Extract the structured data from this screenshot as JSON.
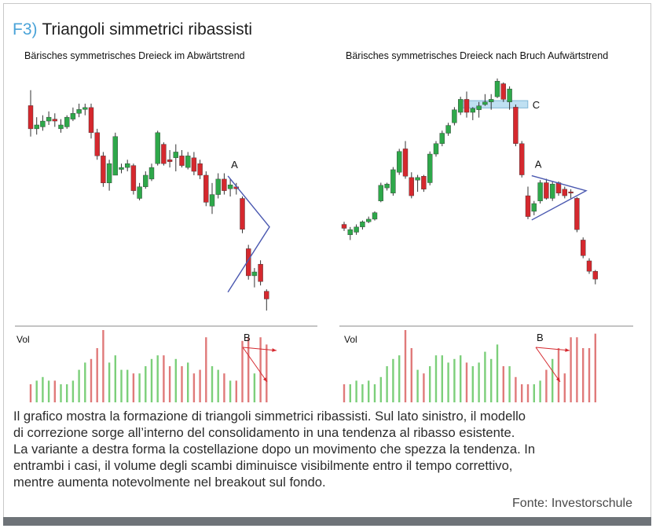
{
  "figure": {
    "label": "F3)",
    "title": "Triangoli simmetrici ribassisti",
    "caption_lines": [
      "Il grafico mostra la formazione di triangoli simmetrici ribassisti. Sul lato sinistro, il modello",
      "di correzione sorge all’interno del consolidamento in una tendenza al ribasso esistente.",
      "La variante a destra forma la costellazione dopo un movimento che spezza la tendenza. In",
      "entrambi i casi, il volume degli scambi diminuisce visibilmente entro il tempo correttivo,",
      "mentre aumenta notevolmente nel breakout sul fondo."
    ],
    "source": "Fonte: Investorschule"
  },
  "colors": {
    "bull": "#2ea84a",
    "bear": "#d5282e",
    "vol_bull": "#7ccf7a",
    "vol_bear": "#e07a7a",
    "triangle": "#4a58b0",
    "breakout_arrow": "#d5282e",
    "zone_fill": "#bfe0f2",
    "zone_stroke": "#7fb6d6",
    "axis": "#888888"
  },
  "chart_data": [
    {
      "type": "candlestick",
      "title": "Bärisches symmetrisches Dreieck im Abwärtstrend",
      "volume_label": "Vol",
      "annotations": {
        "triangle_label": "A",
        "volume_label": "B"
      },
      "candles": [
        {
          "o": 70,
          "h": 74,
          "l": 62,
          "c": 64
        },
        {
          "o": 64,
          "h": 67,
          "l": 62.5,
          "c": 65
        },
        {
          "o": 64.5,
          "h": 67.5,
          "l": 63.5,
          "c": 66
        },
        {
          "o": 66,
          "h": 68.5,
          "l": 65,
          "c": 67
        },
        {
          "o": 66.5,
          "h": 68,
          "l": 64.5,
          "c": 66
        },
        {
          "o": 64,
          "h": 66.5,
          "l": 63,
          "c": 65
        },
        {
          "o": 64.5,
          "h": 67.5,
          "l": 64,
          "c": 67
        },
        {
          "o": 66.5,
          "h": 69.5,
          "l": 66,
          "c": 68
        },
        {
          "o": 68,
          "h": 70.5,
          "l": 67,
          "c": 69
        },
        {
          "o": 69,
          "h": 70.5,
          "l": 67.5,
          "c": 69.5
        },
        {
          "o": 69.5,
          "h": 70.5,
          "l": 61.5,
          "c": 63
        },
        {
          "o": 63,
          "h": 64,
          "l": 56,
          "c": 57
        },
        {
          "o": 57,
          "h": 58,
          "l": 49,
          "c": 50
        },
        {
          "o": 50,
          "h": 56,
          "l": 48,
          "c": 55
        },
        {
          "o": 52,
          "h": 63,
          "l": 52,
          "c": 62
        },
        {
          "o": 53.5,
          "h": 55,
          "l": 52.5,
          "c": 54
        },
        {
          "o": 54,
          "h": 56,
          "l": 53,
          "c": 55
        },
        {
          "o": 54.5,
          "h": 55,
          "l": 47,
          "c": 48
        },
        {
          "o": 46,
          "h": 50,
          "l": 45.5,
          "c": 49
        },
        {
          "o": 49,
          "h": 53,
          "l": 48.5,
          "c": 52
        },
        {
          "o": 51,
          "h": 55,
          "l": 50.5,
          "c": 54
        },
        {
          "o": 55,
          "h": 63.5,
          "l": 54.5,
          "c": 63
        },
        {
          "o": 60,
          "h": 60.5,
          "l": 54.5,
          "c": 55
        },
        {
          "o": 56,
          "h": 58.5,
          "l": 54,
          "c": 55.5
        },
        {
          "o": 56.5,
          "h": 60,
          "l": 53,
          "c": 58
        },
        {
          "o": 57,
          "h": 58.5,
          "l": 54,
          "c": 54.5
        },
        {
          "o": 54,
          "h": 58,
          "l": 53.5,
          "c": 57
        },
        {
          "o": 56.5,
          "h": 58,
          "l": 52,
          "c": 53
        },
        {
          "o": 55,
          "h": 56,
          "l": 51,
          "c": 52
        },
        {
          "o": 52,
          "h": 53,
          "l": 44,
          "c": 45
        },
        {
          "o": 44,
          "h": 50,
          "l": 42,
          "c": 47
        },
        {
          "o": 47,
          "h": 52.5,
          "l": 46,
          "c": 51
        },
        {
          "o": 51,
          "h": 52.5,
          "l": 47,
          "c": 48
        },
        {
          "o": 48.5,
          "h": 51,
          "l": 46.5,
          "c": 49.5
        },
        {
          "o": 49,
          "h": 50,
          "l": 47,
          "c": 48.5
        },
        {
          "o": 46,
          "h": 46.5,
          "l": 37,
          "c": 38
        },
        {
          "o": 33,
          "h": 34,
          "l": 25,
          "c": 26
        },
        {
          "o": 26,
          "h": 28,
          "l": 23,
          "c": 27
        },
        {
          "o": 29,
          "h": 30,
          "l": 23.5,
          "c": 24.5
        },
        {
          "o": 22,
          "h": 22.5,
          "l": 17,
          "c": 20
        }
      ],
      "volume": [
        5,
        6,
        7,
        6,
        6,
        5,
        5,
        6,
        9,
        11,
        12,
        15,
        20,
        11,
        13,
        9,
        9,
        8,
        8,
        10,
        12,
        13,
        13,
        10,
        12,
        10,
        11,
        8,
        9,
        18,
        10,
        9,
        8,
        6,
        6,
        17,
        18,
        8,
        18,
        16
      ],
      "ylim": [
        14,
        78
      ],
      "vol_max": 20
    },
    {
      "type": "candlestick",
      "title": "Bärisches symmetrisches Dreieck nach Bruch Aufwärtstrend",
      "volume_label": "Vol",
      "annotations": {
        "triangle_label": "A",
        "volume_label": "B",
        "zone_label": "C"
      },
      "candles": [
        {
          "o": 30,
          "h": 31,
          "l": 27.5,
          "c": 28.5
        },
        {
          "o": 26,
          "h": 29,
          "l": 24,
          "c": 28
        },
        {
          "o": 27,
          "h": 30,
          "l": 26,
          "c": 29
        },
        {
          "o": 29,
          "h": 31.5,
          "l": 28,
          "c": 31
        },
        {
          "o": 31,
          "h": 33,
          "l": 30.5,
          "c": 32
        },
        {
          "o": 32,
          "h": 35,
          "l": 31.5,
          "c": 34.5
        },
        {
          "o": 39,
          "h": 46,
          "l": 38.5,
          "c": 45
        },
        {
          "o": 44,
          "h": 46,
          "l": 43,
          "c": 45.5
        },
        {
          "o": 42,
          "h": 52,
          "l": 41,
          "c": 51
        },
        {
          "o": 50,
          "h": 59,
          "l": 49,
          "c": 58
        },
        {
          "o": 59,
          "h": 62,
          "l": 47.5,
          "c": 48.5
        },
        {
          "o": 48,
          "h": 50,
          "l": 40,
          "c": 41
        },
        {
          "o": 47,
          "h": 49,
          "l": 42.5,
          "c": 48
        },
        {
          "o": 48.5,
          "h": 49,
          "l": 42.5,
          "c": 43.5
        },
        {
          "o": 46,
          "h": 58,
          "l": 45,
          "c": 57
        },
        {
          "o": 57,
          "h": 62,
          "l": 56,
          "c": 61
        },
        {
          "o": 61,
          "h": 66,
          "l": 60,
          "c": 65
        },
        {
          "o": 65,
          "h": 69,
          "l": 64,
          "c": 68
        },
        {
          "o": 69,
          "h": 75,
          "l": 68,
          "c": 74
        },
        {
          "o": 73,
          "h": 79,
          "l": 72,
          "c": 78
        },
        {
          "o": 78,
          "h": 81,
          "l": 71,
          "c": 73
        },
        {
          "o": 73,
          "h": 75,
          "l": 70,
          "c": 74.5
        },
        {
          "o": 74,
          "h": 77,
          "l": 71,
          "c": 75.5
        },
        {
          "o": 76,
          "h": 80,
          "l": 75.5,
          "c": 77
        },
        {
          "o": 77,
          "h": 80,
          "l": 74,
          "c": 78
        },
        {
          "o": 79,
          "h": 86,
          "l": 78.5,
          "c": 85
        },
        {
          "o": 84,
          "h": 84.5,
          "l": 77,
          "c": 78
        },
        {
          "o": 77,
          "h": 83,
          "l": 74,
          "c": 82
        },
        {
          "o": 75,
          "h": 76,
          "l": 60,
          "c": 61
        },
        {
          "o": 61,
          "h": 62,
          "l": 48,
          "c": 49
        },
        {
          "o": 41,
          "h": 44.5,
          "l": 32,
          "c": 33
        },
        {
          "o": 35,
          "h": 39,
          "l": 33.5,
          "c": 38
        },
        {
          "o": 39,
          "h": 47,
          "l": 38,
          "c": 46
        },
        {
          "o": 46,
          "h": 47.5,
          "l": 39.5,
          "c": 40
        },
        {
          "o": 40,
          "h": 46.5,
          "l": 39,
          "c": 45.5
        },
        {
          "o": 46,
          "h": 46.5,
          "l": 41,
          "c": 42
        },
        {
          "o": 43.5,
          "h": 44.5,
          "l": 40,
          "c": 41
        },
        {
          "o": 42.5,
          "h": 43.5,
          "l": 40,
          "c": 42
        },
        {
          "o": 40,
          "h": 40.5,
          "l": 27,
          "c": 28
        },
        {
          "o": 24,
          "h": 25,
          "l": 17,
          "c": 18
        },
        {
          "o": 16,
          "h": 17,
          "l": 11,
          "c": 12
        },
        {
          "o": 12,
          "h": 12.5,
          "l": 7,
          "c": 9
        }
      ],
      "volume": [
        5,
        5,
        6,
        5,
        6,
        5,
        7,
        10,
        12,
        13,
        20,
        15,
        9,
        8,
        10,
        13,
        13,
        11,
        12,
        13,
        11,
        10,
        11,
        14,
        12,
        16,
        10,
        10,
        7,
        5,
        5,
        5,
        6,
        9,
        12,
        15,
        8,
        18,
        18,
        15,
        15,
        19
      ],
      "ylim": [
        0,
        92
      ],
      "vol_max": 20
    }
  ]
}
